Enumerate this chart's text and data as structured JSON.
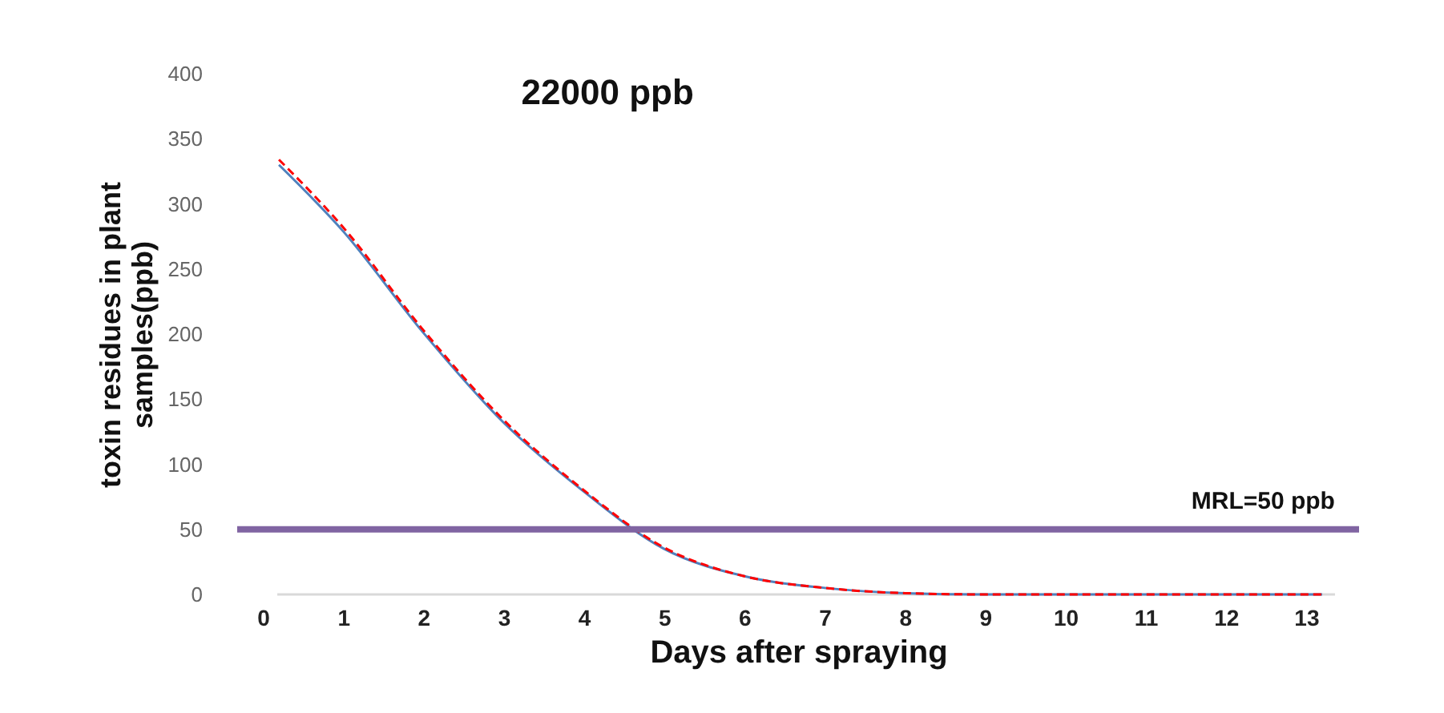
{
  "chart_data": {
    "type": "line",
    "title": "22000 ppb",
    "xlabel": "Days after spraying",
    "ylabel": "toxin residues in plant samples(ppb)",
    "x": [
      0.2,
      1,
      2,
      3,
      4,
      5,
      6,
      7,
      8,
      9,
      10,
      11,
      12,
      13.2
    ],
    "series": [
      {
        "color": "#4f81bd",
        "line_style": "solid",
        "values": [
          330,
          279,
          201,
          132,
          79,
          35,
          14,
          5,
          1,
          0,
          0,
          0,
          0,
          0
        ]
      },
      {
        "color": "#ff0000",
        "line_style": "dashed",
        "values": [
          334,
          282,
          203,
          134,
          80,
          36,
          14,
          5,
          1,
          0,
          0,
          0,
          0,
          0
        ]
      }
    ],
    "xlim": [
      -0.32,
      13.66
    ],
    "xticks": [
      0,
      1,
      2,
      3,
      4,
      5,
      6,
      7,
      8,
      9,
      10,
      11,
      12,
      13
    ],
    "ylim": [
      0,
      400
    ],
    "yticks": [
      0,
      50,
      100,
      150,
      200,
      250,
      300,
      350,
      400
    ],
    "ref_lines": [
      {
        "axis": "y",
        "value": 50,
        "label": "MRL=50 ppb",
        "color": "#8064a2"
      }
    ]
  }
}
